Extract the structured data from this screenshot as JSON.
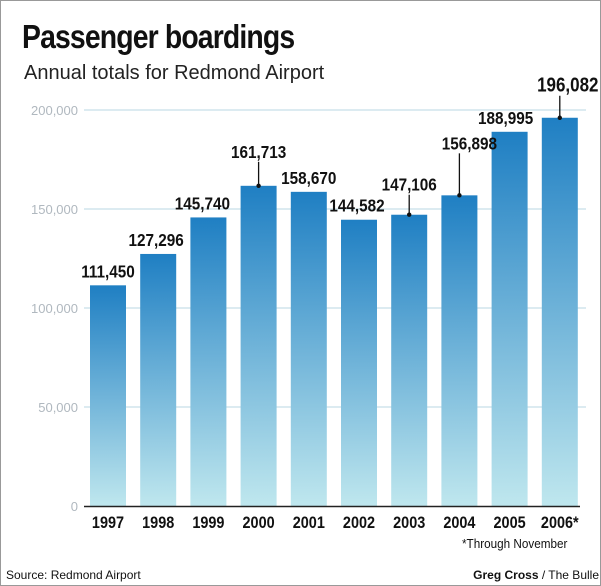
{
  "colors": {
    "bar_top": "#1f7fc3",
    "bar_bottom": "#bfe7ee",
    "grid": "#b8d7e3",
    "axis": "#222222",
    "label": "#111111"
  },
  "footer": {
    "footnote": "*Through November",
    "source": "Source: Redmond Airport",
    "credit_name": "Greg Cross",
    "credit_sep": " / ",
    "credit_org": "The Bulle"
  },
  "chart_data": {
    "type": "bar",
    "title": "Passenger boardings",
    "subtitle": "Annual totals for Redmond Airport",
    "categories": [
      "1997",
      "1998",
      "1999",
      "2000",
      "2001",
      "2002",
      "2003",
      "2004",
      "2005",
      "2006*"
    ],
    "values": [
      111450,
      127296,
      145740,
      161713,
      158670,
      144582,
      147106,
      156898,
      188995,
      196082
    ],
    "data_labels": [
      "111,450",
      "127,296",
      "145,740",
      "161,713",
      "158,670",
      "144,582",
      "147,106",
      "156,898",
      "188,995",
      "196,082"
    ],
    "ylim": [
      0,
      200000
    ],
    "yticks": [
      0,
      50000,
      100000,
      150000,
      200000
    ],
    "ytick_labels": [
      "0",
      "50,000",
      "100,000",
      "150,000",
      "200,000"
    ],
    "grid": true,
    "xlabel": "",
    "ylabel": ""
  }
}
